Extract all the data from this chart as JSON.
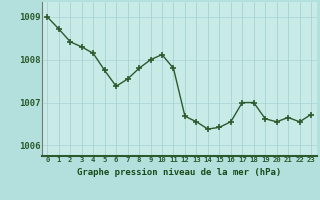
{
  "x": [
    0,
    1,
    2,
    3,
    4,
    5,
    6,
    7,
    8,
    9,
    10,
    11,
    12,
    13,
    14,
    15,
    16,
    17,
    18,
    19,
    20,
    21,
    22,
    23
  ],
  "y": [
    1009.0,
    1008.72,
    1008.42,
    1008.3,
    1008.15,
    1007.75,
    1007.38,
    1007.55,
    1007.8,
    1008.0,
    1008.12,
    1007.8,
    1006.68,
    1006.55,
    1006.38,
    1006.42,
    1006.55,
    1007.0,
    1007.0,
    1006.62,
    1006.55,
    1006.65,
    1006.55,
    1006.72
  ],
  "line_color": "#2d5a2d",
  "marker_color": "#2d5a2d",
  "bg_color": "#b3e0dc",
  "plot_bg_color": "#c8ebe8",
  "grid_color_v": "#9ecece",
  "grid_color_h": "#aad4d4",
  "xlabel": "Graphe pression niveau de la mer (hPa)",
  "xlabel_color": "#1a4a1a",
  "ylabel_color": "#2d5a2d",
  "border_bottom_color": "#2d5a2d",
  "ylim_min": 1005.75,
  "ylim_max": 1009.35,
  "yticks": [
    1006,
    1007,
    1008,
    1009
  ],
  "xticks": [
    0,
    1,
    2,
    3,
    4,
    5,
    6,
    7,
    8,
    9,
    10,
    11,
    12,
    13,
    14,
    15,
    16,
    17,
    18,
    19,
    20,
    21,
    22,
    23
  ],
  "xtick_labels": [
    "0",
    "1",
    "2",
    "3",
    "4",
    "5",
    "6",
    "7",
    "8",
    "9",
    "10",
    "11",
    "12",
    "13",
    "14",
    "15",
    "16",
    "17",
    "18",
    "19",
    "20",
    "21",
    "22",
    "23"
  ],
  "line_width": 1.0,
  "marker_size": 4.0
}
